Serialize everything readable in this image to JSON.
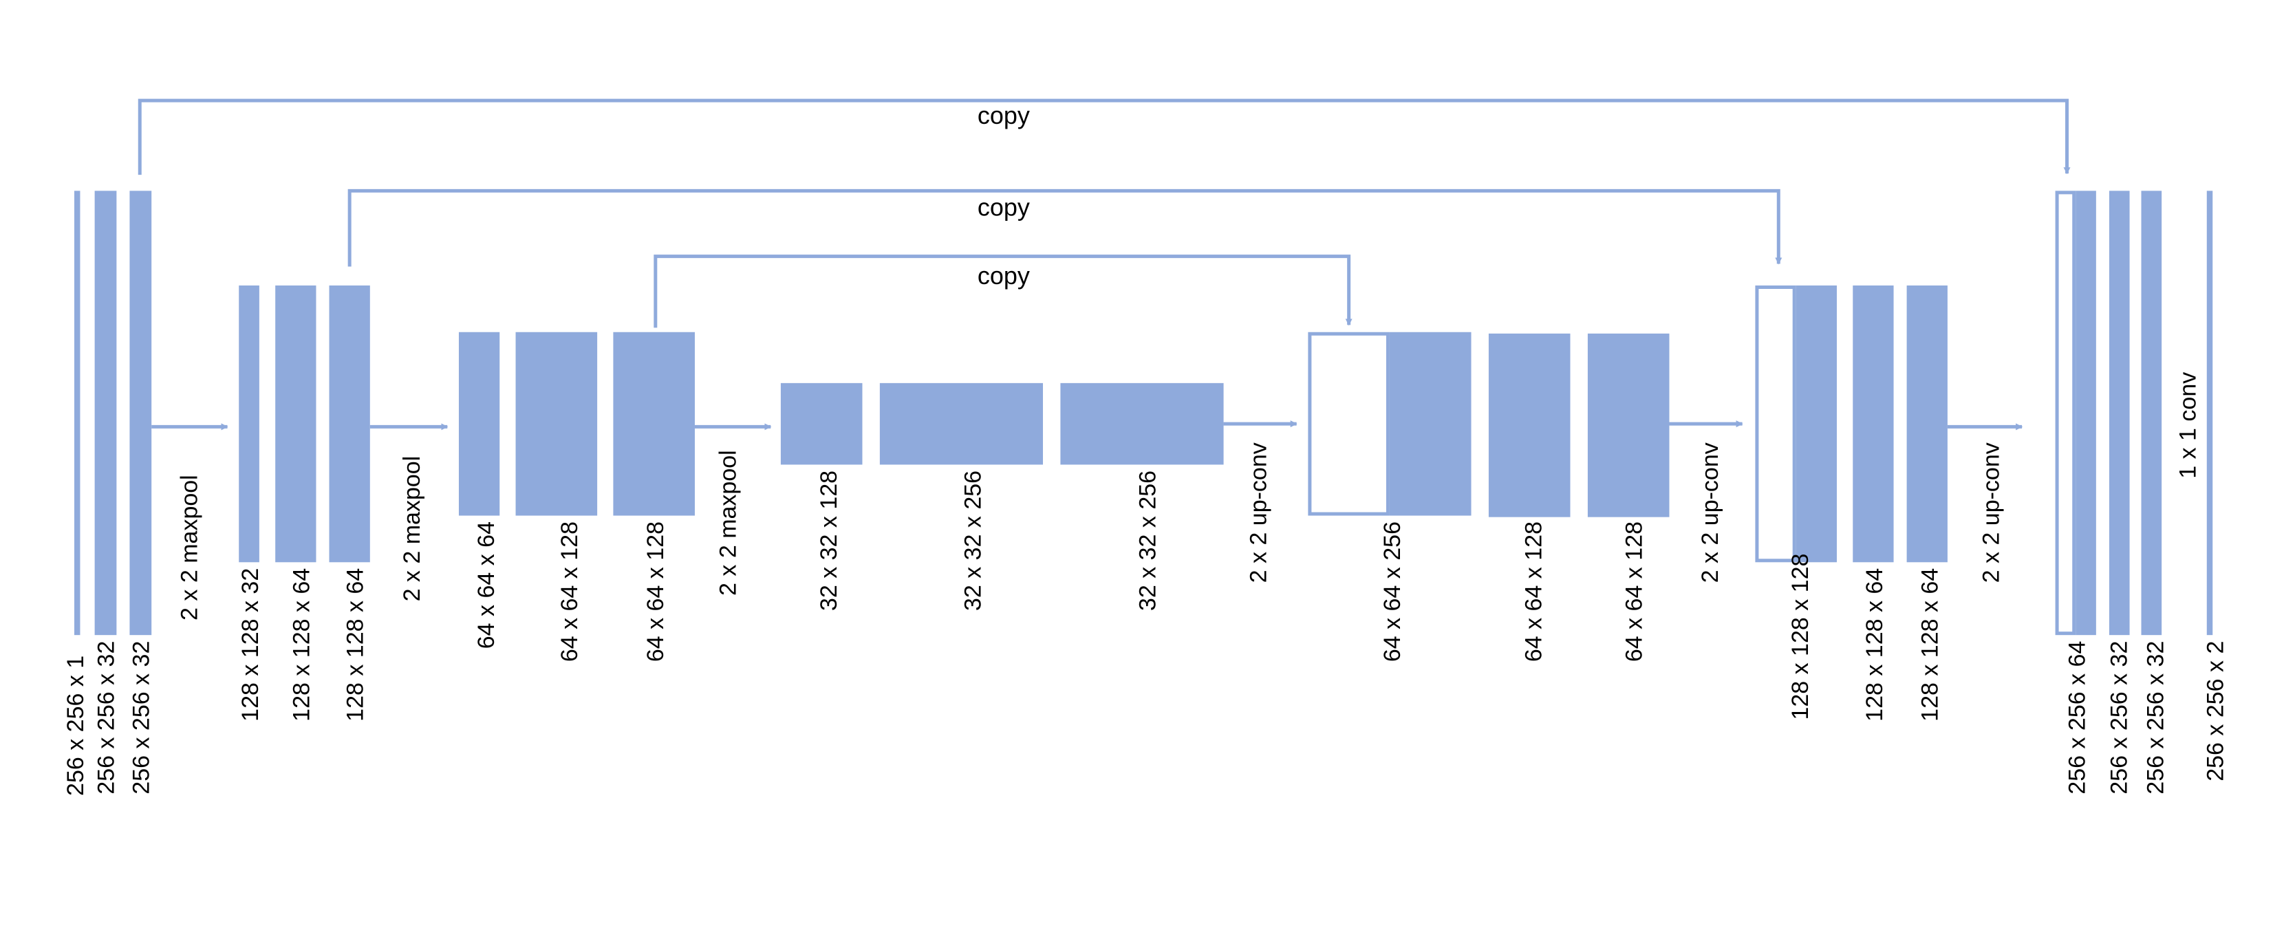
{
  "colors": {
    "block": "#8faadc",
    "line": "#8faadc",
    "text": "#000000",
    "background": "#ffffff"
  },
  "blocks": [
    {
      "id": "enc1-in",
      "label": "256 x 256 x 1"
    },
    {
      "id": "enc1-c1",
      "label": "256 x 256 x 32"
    },
    {
      "id": "enc1-c2",
      "label": "256 x 256 x 32"
    },
    {
      "id": "enc2-pool",
      "label": "128 x 128 x 32"
    },
    {
      "id": "enc2-c1",
      "label": "128 x 128 x 64"
    },
    {
      "id": "enc2-c2",
      "label": "128 x 128 x 64"
    },
    {
      "id": "enc3-pool",
      "label": "64 x 64 x 64"
    },
    {
      "id": "enc3-c1",
      "label": "64 x 64 x 128"
    },
    {
      "id": "enc3-c2",
      "label": "64 x 64 x 128"
    },
    {
      "id": "bott-pool",
      "label": "32 x 32 x 128"
    },
    {
      "id": "bott-c1",
      "label": "32 x 32 x 256"
    },
    {
      "id": "bott-c2",
      "label": "32 x 32 x 256"
    },
    {
      "id": "dec3-cat",
      "label": "64 x 64 x 256"
    },
    {
      "id": "dec3-c1",
      "label": "64 x 64 x 128"
    },
    {
      "id": "dec3-c2",
      "label": "64 x 64 x 128"
    },
    {
      "id": "dec2-cat",
      "label": "128 x 128 x 128"
    },
    {
      "id": "dec2-c1",
      "label": "128 x 128 x 64"
    },
    {
      "id": "dec2-c2",
      "label": "128 x 128 x 64"
    },
    {
      "id": "dec1-cat",
      "label": "256 x 256 x 64"
    },
    {
      "id": "dec1-c1",
      "label": "256 x 256 x 32"
    },
    {
      "id": "dec1-c2",
      "label": "256 x 256 x 32"
    },
    {
      "id": "out",
      "label": "256 x 256 x 2"
    }
  ],
  "operations": [
    {
      "id": "pool1",
      "label": "2 x 2 maxpool"
    },
    {
      "id": "pool2",
      "label": "2 x 2 maxpool"
    },
    {
      "id": "pool3",
      "label": "2 x 2 maxpool"
    },
    {
      "id": "up3",
      "label": "2 x 2 up-conv"
    },
    {
      "id": "up2",
      "label": "2 x 2 up-conv"
    },
    {
      "id": "up1",
      "label": "2 x 2 up-conv"
    },
    {
      "id": "conv1x1",
      "label": "1 x 1 conv"
    }
  ],
  "skips": [
    {
      "id": "skip1",
      "label": "copy"
    },
    {
      "id": "skip2",
      "label": "copy"
    },
    {
      "id": "skip3",
      "label": "copy"
    }
  ]
}
